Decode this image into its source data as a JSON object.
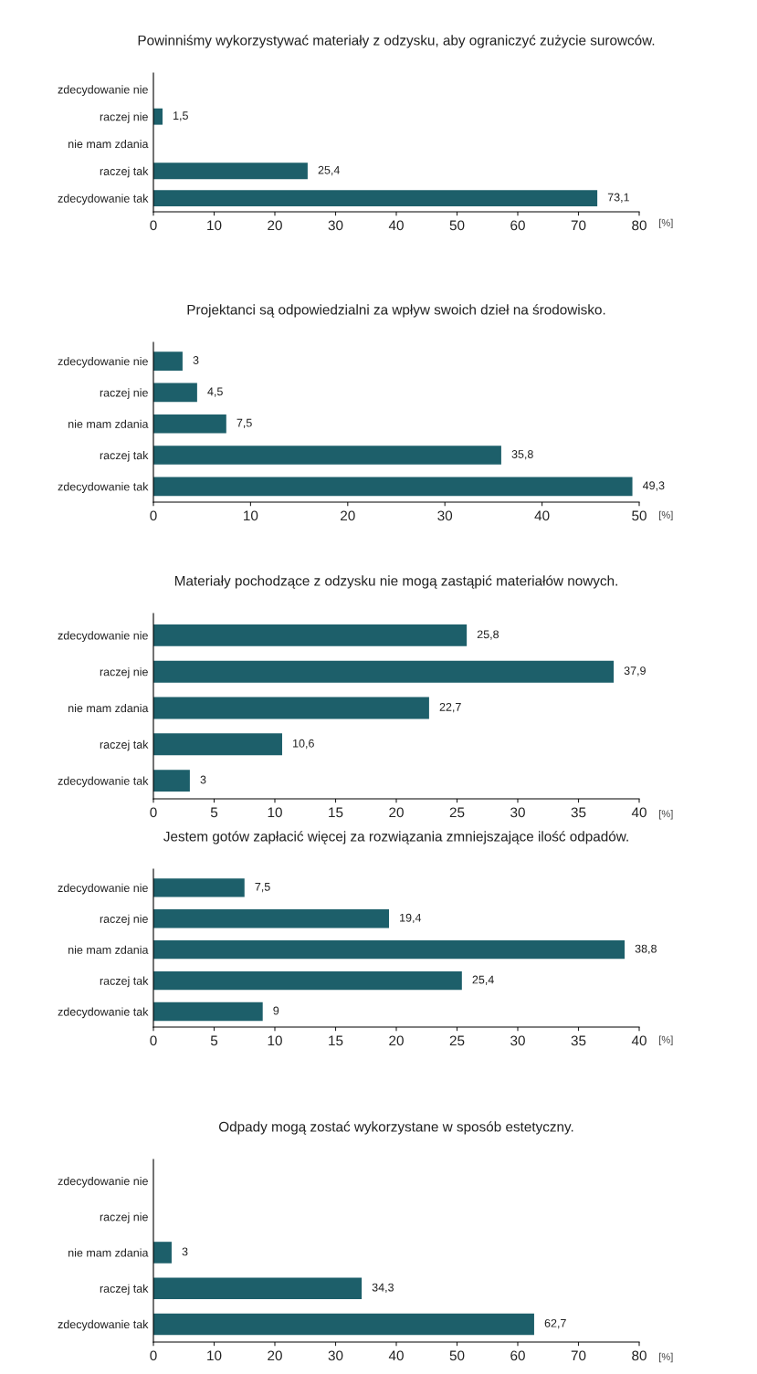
{
  "chart_data": [
    {
      "type": "bar",
      "orientation": "horizontal",
      "title": "Powinniśmy wykorzystywać materiały z odzysku, aby ograniczyć zużycie surowców.",
      "xlabel": "[%]",
      "categories": [
        "zdecydowanie nie",
        "raczej nie",
        "nie mam zdania",
        "raczej tak",
        "zdecydowanie tak"
      ],
      "values": [
        null,
        1.5,
        null,
        25.4,
        73.1
      ],
      "value_labels": [
        null,
        "1,5",
        null,
        "25,4",
        "73,1"
      ],
      "color": "#1d5f6a",
      "xlim": [
        0,
        80
      ],
      "xticks": [
        0,
        10,
        20,
        30,
        40,
        50,
        60,
        70,
        80
      ],
      "grid": false,
      "legend": false
    },
    {
      "type": "bar",
      "orientation": "horizontal",
      "title": "Projektanci są odpowiedzialni za wpływ swoich dzieł na środowisko.",
      "xlabel": "[%]",
      "categories": [
        "zdecydowanie nie",
        "raczej nie",
        "nie mam zdania",
        "raczej tak",
        "zdecydowanie tak"
      ],
      "values": [
        3,
        4.5,
        7.5,
        35.8,
        49.3
      ],
      "value_labels": [
        "3",
        "4,5",
        "7,5",
        "35,8",
        "49,3"
      ],
      "color": "#1d5f6a",
      "xlim": [
        0,
        50
      ],
      "xticks": [
        0,
        10,
        20,
        30,
        40,
        50
      ],
      "grid": false,
      "legend": false
    },
    {
      "type": "bar",
      "orientation": "horizontal",
      "title": "Materiały pochodzące z odzysku nie mogą zastąpić materiałów nowych.",
      "xlabel": "[%]",
      "categories": [
        "zdecydowanie nie",
        "raczej nie",
        "nie mam zdania",
        "raczej tak",
        "zdecydowanie tak"
      ],
      "values": [
        25.8,
        37.9,
        22.7,
        10.6,
        3
      ],
      "value_labels": [
        "25,8",
        "37,9",
        "22,7",
        "10,6",
        "3"
      ],
      "color": "#1d5f6a",
      "xlim": [
        0,
        40
      ],
      "xticks": [
        0,
        5,
        10,
        15,
        20,
        25,
        30,
        35,
        40
      ],
      "grid": false,
      "legend": false
    },
    {
      "type": "bar",
      "orientation": "horizontal",
      "title": "Jestem gotów zapłacić więcej za rozwiązania zmniejszające ilość odpadów.",
      "xlabel": "[%]",
      "categories": [
        "zdecydowanie nie",
        "raczej nie",
        "nie mam zdania",
        "raczej tak",
        "zdecydowanie tak"
      ],
      "values": [
        7.5,
        19.4,
        38.8,
        25.4,
        9
      ],
      "value_labels": [
        "7,5",
        "19,4",
        "38,8",
        "25,4",
        "9"
      ],
      "color": "#1d5f6a",
      "xlim": [
        0,
        40
      ],
      "xticks": [
        0,
        5,
        10,
        15,
        20,
        25,
        30,
        35,
        40
      ],
      "grid": false,
      "legend": false
    },
    {
      "type": "bar",
      "orientation": "horizontal",
      "title": "Odpady mogą zostać wykorzystane w sposób estetyczny.",
      "xlabel": "[%]",
      "categories": [
        "zdecydowanie nie",
        "raczej nie",
        "nie mam zdania",
        "raczej tak",
        "zdecydowanie tak"
      ],
      "values": [
        null,
        null,
        3,
        34.3,
        62.7
      ],
      "value_labels": [
        null,
        null,
        "3",
        "34,3",
        "62,7"
      ],
      "color": "#1d5f6a",
      "xlim": [
        0,
        80
      ],
      "xticks": [
        0,
        10,
        20,
        30,
        40,
        50,
        60,
        70,
        80
      ],
      "grid": false,
      "legend": false
    }
  ]
}
